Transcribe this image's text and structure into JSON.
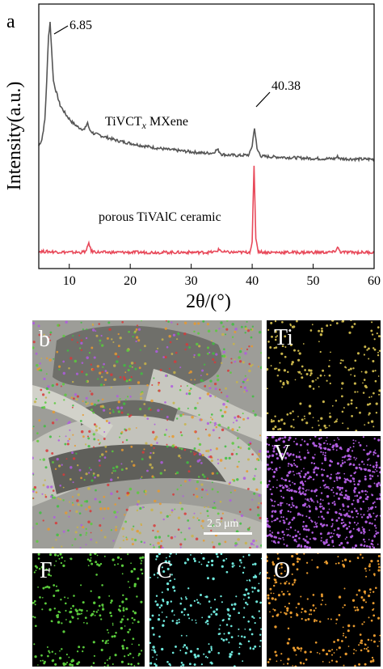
{
  "chart_data": {
    "type": "line",
    "panel_label": "a",
    "xlabel": "2θ/(°)",
    "ylabel": "Intensity(a.u.)",
    "xlim": [
      5,
      60
    ],
    "xticks": [
      10,
      20,
      30,
      40,
      50,
      60
    ],
    "grid": false,
    "series": [
      {
        "name": "TiVCTx MXene",
        "name_main": "TiVCT",
        "name_sub": "x",
        "name_tail": " MXene",
        "color": "#555555",
        "x": [
          5,
          5.5,
          6,
          6.3,
          6.6,
          6.85,
          7.1,
          7.4,
          7.8,
          8.5,
          9.5,
          10.5,
          11.5,
          12.5,
          13.0,
          13.3,
          14,
          16,
          18,
          20,
          22,
          24,
          26,
          28,
          30,
          32,
          33.5,
          34.3,
          35,
          36,
          38,
          39.5,
          40.0,
          40.38,
          40.8,
          41.5,
          43,
          45,
          48,
          50,
          52,
          53.5,
          54.0,
          54.5,
          56,
          58,
          60
        ],
        "y": [
          0.455,
          0.48,
          0.56,
          0.72,
          0.9,
          0.96,
          0.85,
          0.72,
          0.68,
          0.62,
          0.58,
          0.55,
          0.53,
          0.52,
          0.55,
          0.52,
          0.505,
          0.49,
          0.475,
          0.465,
          0.455,
          0.447,
          0.44,
          0.435,
          0.43,
          0.425,
          0.425,
          0.44,
          0.42,
          0.417,
          0.415,
          0.418,
          0.455,
          0.53,
          0.44,
          0.412,
          0.41,
          0.408,
          0.405,
          0.403,
          0.402,
          0.402,
          0.41,
          0.402,
          0.401,
          0.4,
          0.4
        ]
      },
      {
        "name": "porous TiVAlC ceramic",
        "color": "#e8495a",
        "x": [
          5,
          8,
          10,
          12,
          12.8,
          13.2,
          13.6,
          15,
          20,
          25,
          30,
          33,
          34.0,
          34.6,
          35.2,
          37,
          39,
          39.6,
          40.0,
          40.3,
          40.6,
          41.0,
          42,
          44,
          46,
          48,
          50,
          52,
          53.5,
          54.0,
          54.5,
          56,
          58,
          60
        ],
        "y": [
          0.024,
          0.022,
          0.02,
          0.02,
          0.025,
          0.06,
          0.025,
          0.02,
          0.02,
          0.02,
          0.02,
          0.02,
          0.022,
          0.032,
          0.021,
          0.02,
          0.02,
          0.022,
          0.06,
          0.37,
          0.08,
          0.024,
          0.02,
          0.02,
          0.02,
          0.02,
          0.02,
          0.02,
          0.021,
          0.04,
          0.021,
          0.02,
          0.02,
          0.02
        ]
      }
    ],
    "annotations": [
      {
        "text": "6.85",
        "x": 6.85
      },
      {
        "text": "40.38",
        "x": 40.38
      }
    ]
  },
  "edx": {
    "panel_label": "b",
    "scale_bar": "2.5 μm",
    "tiles": [
      {
        "label": "Ti",
        "color": "#c8b44a"
      },
      {
        "label": "V",
        "color": "#b05ce0"
      },
      {
        "label": "F",
        "color": "#5acb3c"
      },
      {
        "label": "C",
        "color": "#6fe8dc"
      },
      {
        "label": "O",
        "color": "#e89a2e"
      }
    ]
  }
}
